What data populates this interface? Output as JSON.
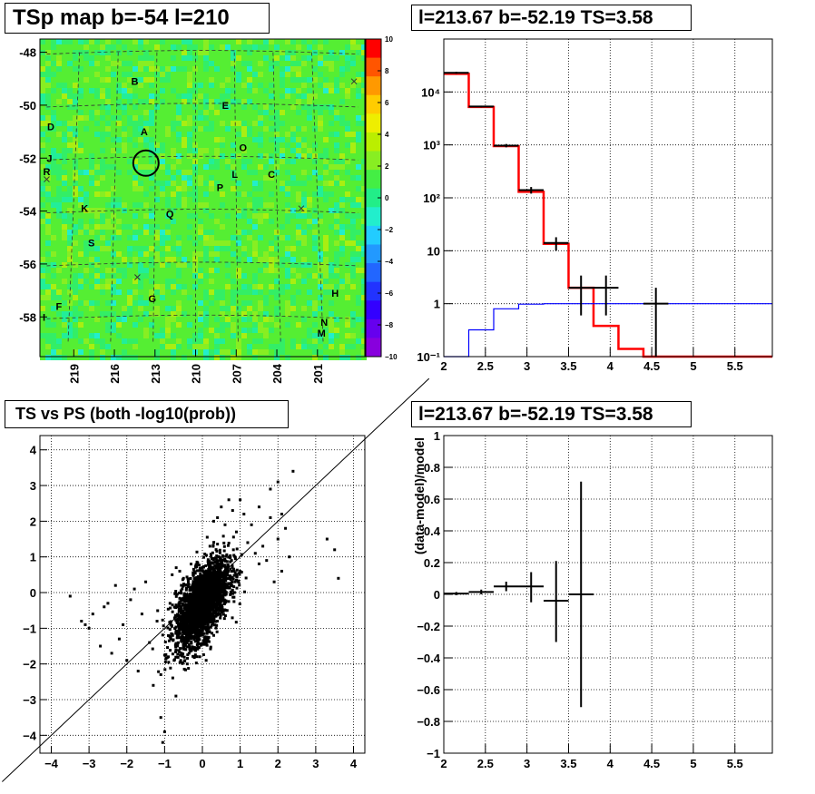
{
  "titles": {
    "map": "TSp map b=-54 l=210",
    "spectrum": "l=213.67 b=-52.19 TS=3.58",
    "scatter": "TS vs PS (both -log10(prob))",
    "residual": "l=213.67 b=-52.19 TS=3.58"
  },
  "chart_data": [
    {
      "type": "heatmap",
      "title": "TSp map b=-54 l=210",
      "x_ticks": [
        "219",
        "216",
        "213",
        "210",
        "207",
        "204",
        "201"
      ],
      "y_ticks": [
        "-48",
        "-50",
        "-52",
        "-54",
        "-56",
        "-58"
      ],
      "xlim": [
        221.5,
        197.5
      ],
      "ylim": [
        -59.5,
        -47.5
      ],
      "zlim": [
        -10,
        10
      ],
      "colorbar_ticks": [
        "10",
        "8",
        "6",
        "4",
        "2",
        "0",
        "−2",
        "−4",
        "−6",
        "−8",
        "−10"
      ],
      "labels": [
        {
          "text": "B",
          "l": 214.5,
          "b": -49.1
        },
        {
          "text": "E",
          "l": 207.8,
          "b": -50.0
        },
        {
          "text": "D",
          "l": 220.7,
          "b": -50.8
        },
        {
          "text": "A",
          "l": 213.8,
          "b": -51.0
        },
        {
          "text": "O",
          "l": 206.5,
          "b": -51.6
        },
        {
          "text": "J",
          "l": 220.8,
          "b": -52.0
        },
        {
          "text": "R",
          "l": 221.0,
          "b": -52.5
        },
        {
          "text": "L",
          "l": 207.1,
          "b": -52.6
        },
        {
          "text": "C",
          "l": 204.4,
          "b": -52.6
        },
        {
          "text": "P",
          "l": 208.2,
          "b": -53.1
        },
        {
          "text": "K",
          "l": 218.2,
          "b": -53.9
        },
        {
          "text": "Q",
          "l": 211.9,
          "b": -54.1
        },
        {
          "text": "S",
          "l": 217.7,
          "b": -55.2
        },
        {
          "text": "G",
          "l": 213.2,
          "b": -57.3
        },
        {
          "text": "H",
          "l": 199.7,
          "b": -57.1
        },
        {
          "text": "F",
          "l": 220.1,
          "b": -57.6
        },
        {
          "text": "I",
          "l": 221.2,
          "b": -58.0
        },
        {
          "text": "N",
          "l": 200.5,
          "b": -58.2
        },
        {
          "text": "M",
          "l": 200.7,
          "b": -58.6
        }
      ],
      "circle": {
        "l": 213.67,
        "b": -52.19
      }
    },
    {
      "type": "line",
      "title": "l=213.67 b=-52.19 TS=3.58",
      "xlim": [
        2,
        5.95
      ],
      "ylim": [
        0.1,
        100000
      ],
      "yscale": "log",
      "x_ticks": [
        "2",
        "2.5",
        "3",
        "3.5",
        "4",
        "4.5",
        "5",
        "5.5"
      ],
      "y_ticks": [
        "10⁻¹",
        "1",
        "10",
        "10²",
        "10³",
        "10⁴"
      ],
      "grid": true,
      "series": [
        {
          "color": "#ff0000",
          "step_edges": [
            2,
            2.3,
            2.6,
            2.9,
            3.2,
            3.5,
            3.8,
            4.1,
            4.4,
            4.7,
            5.95
          ],
          "values": [
            22000,
            5200,
            950,
            130,
            13.5,
            2.0,
            0.38,
            0.14,
            0.1,
            0.1
          ]
        },
        {
          "color": "#0000ff",
          "step_edges": [
            2,
            2.3,
            2.6,
            2.9,
            3.2,
            5.95
          ],
          "values": [
            0.1,
            0.32,
            0.8,
            0.98,
            1.0
          ]
        },
        {
          "color": "#000000",
          "points": [
            {
              "x": 2.15,
              "xerr": 0.15,
              "y": 23000,
              "ylo": 22000,
              "yhi": 24000
            },
            {
              "x": 2.45,
              "xerr": 0.15,
              "y": 5300,
              "ylo": 5100,
              "yhi": 5500
            },
            {
              "x": 2.75,
              "xerr": 0.15,
              "y": 970,
              "ylo": 900,
              "yhi": 1040
            },
            {
              "x": 3.05,
              "xerr": 0.15,
              "y": 140,
              "ylo": 120,
              "yhi": 160
            },
            {
              "x": 3.35,
              "xerr": 0.15,
              "y": 14,
              "ylo": 10,
              "yhi": 18
            },
            {
              "x": 3.65,
              "xerr": 0.15,
              "y": 2.0,
              "ylo": 0.6,
              "yhi": 3.4
            },
            {
              "x": 3.95,
              "xerr": 0.15,
              "y": 2.0,
              "ylo": 0.6,
              "yhi": 3.4
            },
            {
              "x": 4.55,
              "xerr": 0.15,
              "y": 1.0,
              "ylo": 0.1,
              "yhi": 2.0
            }
          ]
        }
      ]
    },
    {
      "type": "scatter",
      "title": "TS vs PS (both -log10(prob))",
      "xlim": [
        -4.3,
        4.3
      ],
      "ylim": [
        -4.5,
        4.4
      ],
      "x_ticks": [
        "−4",
        "−3",
        "−2",
        "−1",
        "0",
        "1",
        "2",
        "3",
        "4"
      ],
      "y_ticks": [
        "−4",
        "−3",
        "−2",
        "−1",
        "0",
        "1",
        "2",
        "3",
        "4"
      ],
      "grid": true,
      "diagonal": true,
      "series": [
        {
          "name": "",
          "points": [
            [
              -3.5,
              -0.1
            ],
            [
              -3.2,
              -0.8
            ],
            [
              -3.1,
              -0.9
            ],
            [
              -3.0,
              -1.0
            ],
            [
              -2.9,
              -0.6
            ],
            [
              -2.7,
              -1.5
            ],
            [
              -2.6,
              -0.4
            ],
            [
              -2.5,
              -0.3
            ],
            [
              -2.4,
              -1.7
            ],
            [
              -2.3,
              0.2
            ],
            [
              -2.2,
              -1.3
            ],
            [
              -2.1,
              -0.9
            ],
            [
              -2.0,
              -1.9
            ],
            [
              -1.9,
              -0.2
            ],
            [
              -1.8,
              0.1
            ],
            [
              -1.7,
              -2.2
            ],
            [
              -1.6,
              -0.6
            ],
            [
              -1.5,
              0.3
            ],
            [
              -1.4,
              -1.4
            ],
            [
              -1.3,
              -2.6
            ],
            [
              -1.2,
              -0.8
            ],
            [
              -1.1,
              -3.5
            ],
            [
              -1.0,
              -3.9
            ],
            [
              -1.05,
              -4.2
            ],
            [
              -1.1,
              -2.3
            ],
            [
              -0.9,
              -1.8
            ],
            [
              -0.8,
              0.5
            ],
            [
              -0.7,
              -2.9
            ],
            [
              -0.6,
              0.6
            ],
            [
              -0.5,
              -1.1
            ],
            [
              -0.4,
              -2.0
            ],
            [
              -0.3,
              0.8
            ],
            [
              -0.2,
              -1.6
            ],
            [
              0.1,
              -1.9
            ],
            [
              0.2,
              1.3
            ],
            [
              0.3,
              2.0
            ],
            [
              0.4,
              2.1
            ],
            [
              0.5,
              2.4
            ],
            [
              0.6,
              1.9
            ],
            [
              0.7,
              2.6
            ],
            [
              0.8,
              2.3
            ],
            [
              0.9,
              1.7
            ],
            [
              1.0,
              2.6
            ],
            [
              1.1,
              2.2
            ],
            [
              1.2,
              1.4
            ],
            [
              1.3,
              1.9
            ],
            [
              1.4,
              1.1
            ],
            [
              1.5,
              2.4
            ],
            [
              1.6,
              1.3
            ],
            [
              1.7,
              0.9
            ],
            [
              1.8,
              2.1
            ],
            [
              1.9,
              0.3
            ],
            [
              2.0,
              1.5
            ],
            [
              2.1,
              0.6
            ],
            [
              2.2,
              1.8
            ],
            [
              2.3,
              1.0
            ],
            [
              2.4,
              3.4
            ],
            [
              2.1,
              2.2
            ],
            [
              1.8,
              2.9
            ],
            [
              2.0,
              3.1
            ],
            [
              3.3,
              1.5
            ],
            [
              3.5,
              1.2
            ],
            [
              3.6,
              0.4
            ],
            [
              0.0,
              -0.5
            ],
            [
              0.1,
              0.3
            ],
            [
              -0.1,
              0.2
            ],
            [
              0.2,
              -0.4
            ],
            [
              -0.3,
              -0.3
            ],
            [
              0.4,
              0.7
            ],
            [
              0.6,
              0.2
            ],
            [
              -0.5,
              0.4
            ],
            [
              0.3,
              -1.2
            ]
          ]
        },
        {
          "name": "",
          "cloud": {
            "cx": 0.0,
            "cy": -0.3,
            "sx": 0.35,
            "sy": 0.6,
            "rho": 0.6,
            "count": 2600
          }
        }
      ]
    },
    {
      "type": "scatter",
      "title": "l=213.67 b=-52.19 TS=3.58",
      "xlim": [
        2,
        5.95
      ],
      "ylim": [
        -1,
        1
      ],
      "ylabel": "(data-model)/model",
      "x_ticks": [
        "2",
        "2.5",
        "3",
        "3.5",
        "4",
        "4.5",
        "5",
        "5.5"
      ],
      "y_ticks": [
        "−1",
        "−0.8",
        "−0.6",
        "−0.4",
        "−0.2",
        "0",
        "0.2",
        "0.4",
        "0.6",
        "0.8",
        "1"
      ],
      "grid": true,
      "series": [
        {
          "color": "#000000",
          "points": [
            {
              "x": 2.15,
              "xerr": 0.15,
              "y": 0.005,
              "ylo": -0.005,
              "yhi": 0.015
            },
            {
              "x": 2.45,
              "xerr": 0.15,
              "y": 0.015,
              "ylo": 0.0,
              "yhi": 0.03
            },
            {
              "x": 2.75,
              "xerr": 0.15,
              "y": 0.05,
              "ylo": 0.02,
              "yhi": 0.08
            },
            {
              "x": 3.05,
              "xerr": 0.15,
              "y": 0.05,
              "ylo": -0.05,
              "yhi": 0.14
            },
            {
              "x": 3.35,
              "xerr": 0.15,
              "y": -0.04,
              "ylo": -0.3,
              "yhi": 0.21
            },
            {
              "x": 3.65,
              "xerr": 0.15,
              "y": 0.0,
              "ylo": -0.71,
              "yhi": 0.71
            }
          ]
        }
      ]
    }
  ]
}
